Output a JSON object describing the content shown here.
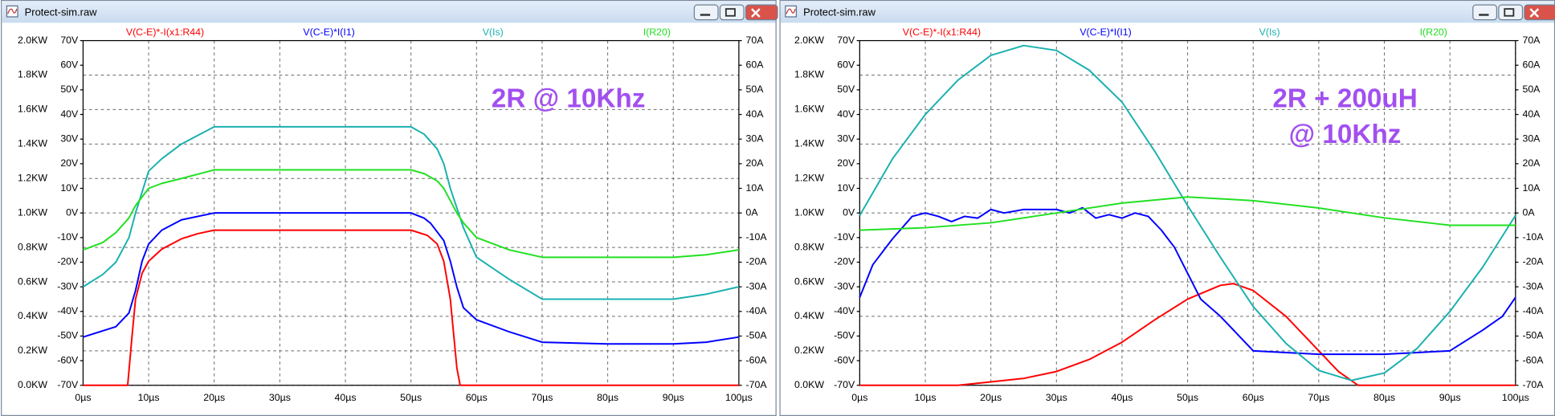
{
  "windows": [
    {
      "title": "Protect-sim.raw"
    },
    {
      "title": "Protect-sim.raw"
    }
  ],
  "chart_data": [
    {
      "type": "line",
      "annotation": [
        "2R @ 10Khz"
      ],
      "annotation_color": "#a24ff0",
      "grid": true,
      "xlim": [
        0,
        100
      ],
      "xticks": [
        {
          "value": 0,
          "label": "0µs"
        },
        {
          "value": 10,
          "label": "10µs"
        },
        {
          "value": 20,
          "label": "20µs"
        },
        {
          "value": 30,
          "label": "30µs"
        },
        {
          "value": 40,
          "label": "40µs"
        },
        {
          "value": 50,
          "label": "50µs"
        },
        {
          "value": 60,
          "label": "60µs"
        },
        {
          "value": 70,
          "label": "70µs"
        },
        {
          "value": 80,
          "label": "80µs"
        },
        {
          "value": 90,
          "label": "90µs"
        },
        {
          "value": 100,
          "label": "100µs"
        }
      ],
      "ylim": [
        0,
        2
      ],
      "yticks": [
        {
          "value": 0,
          "label": "0.0KW"
        },
        {
          "value": 0.2,
          "label": "0.2KW"
        },
        {
          "value": 0.4,
          "label": "0.4KW"
        },
        {
          "value": 0.6,
          "label": "0.6KW"
        },
        {
          "value": 0.8,
          "label": "0.8KW"
        },
        {
          "value": 1,
          "label": "1.0KW"
        },
        {
          "value": 1.2,
          "label": "1.2KW"
        },
        {
          "value": 1.4,
          "label": "1.4KW"
        },
        {
          "value": 1.6,
          "label": "1.6KW"
        },
        {
          "value": 1.8,
          "label": "1.8KW"
        },
        {
          "value": 2,
          "label": "2.0KW"
        }
      ],
      "y2lim": [
        -70,
        70
      ],
      "y2ticks": [
        {
          "value": -70,
          "label": "-70V"
        },
        {
          "value": -60,
          "label": "-60V"
        },
        {
          "value": -50,
          "label": "-50V"
        },
        {
          "value": -40,
          "label": "-40V"
        },
        {
          "value": -30,
          "label": "-30V"
        },
        {
          "value": -20,
          "label": "-20V"
        },
        {
          "value": -10,
          "label": "-10V"
        },
        {
          "value": 0,
          "label": "0V"
        },
        {
          "value": 10,
          "label": "10V"
        },
        {
          "value": 20,
          "label": "20V"
        },
        {
          "value": 30,
          "label": "30V"
        },
        {
          "value": 40,
          "label": "40V"
        },
        {
          "value": 50,
          "label": "50V"
        },
        {
          "value": 60,
          "label": "60V"
        },
        {
          "value": 70,
          "label": "70V"
        }
      ],
      "y3lim": [
        -70,
        70
      ],
      "y3ticks": [
        {
          "value": -70,
          "label": "-70A"
        },
        {
          "value": -60,
          "label": "-60A"
        },
        {
          "value": -50,
          "label": "-50A"
        },
        {
          "value": -40,
          "label": "-40A"
        },
        {
          "value": -30,
          "label": "-30A"
        },
        {
          "value": -20,
          "label": "-20A"
        },
        {
          "value": -10,
          "label": "-10A"
        },
        {
          "value": 0,
          "label": "0A"
        },
        {
          "value": 10,
          "label": "10A"
        },
        {
          "value": 20,
          "label": "20A"
        },
        {
          "value": 30,
          "label": "30A"
        },
        {
          "value": 40,
          "label": "40A"
        },
        {
          "value": 50,
          "label": "50A"
        },
        {
          "value": 60,
          "label": "60A"
        },
        {
          "value": 70,
          "label": "70A"
        }
      ],
      "series": [
        {
          "name": "V(C-E)*-I(x1:R44)",
          "color": "#ff0000",
          "axis": "y",
          "x": [
            0,
            5,
            6.8,
            7.5,
            8,
            9,
            10,
            12,
            15,
            17.5,
            20,
            30,
            40,
            50,
            52.5,
            54,
            55,
            56,
            57,
            57.5,
            60,
            70,
            80,
            90,
            100
          ],
          "values": [
            0,
            0,
            0,
            0.3,
            0.5,
            0.65,
            0.72,
            0.79,
            0.85,
            0.88,
            0.9,
            0.9,
            0.9,
            0.9,
            0.87,
            0.82,
            0.72,
            0.5,
            0.1,
            0,
            0,
            0,
            0,
            0,
            0
          ]
        },
        {
          "name": "V(C-E)*I(I1)",
          "color": "#0000ff",
          "axis": "y",
          "x": [
            0,
            5,
            7,
            8,
            9,
            10,
            12,
            15,
            20,
            30,
            40,
            50,
            52,
            53,
            55,
            56,
            57,
            58,
            60,
            65,
            70,
            80,
            90,
            95,
            100
          ],
          "values": [
            0.28,
            0.34,
            0.42,
            0.55,
            0.72,
            0.82,
            0.9,
            0.96,
            1,
            1,
            1,
            1,
            0.97,
            0.94,
            0.84,
            0.72,
            0.57,
            0.45,
            0.38,
            0.31,
            0.25,
            0.24,
            0.24,
            0.25,
            0.28
          ]
        },
        {
          "name": "V(Is)",
          "color": "#1ab0b0",
          "axis": "y2",
          "x": [
            0,
            3,
            5,
            7,
            8,
            10,
            12,
            15,
            20,
            30,
            40,
            50,
            52,
            54,
            55,
            56,
            57,
            58,
            60,
            65,
            70,
            80,
            90,
            95,
            100
          ],
          "values": [
            -30,
            -25,
            -20,
            -10,
            0,
            17,
            22,
            28,
            35,
            35,
            35,
            35,
            32,
            26,
            20,
            10,
            2,
            -6,
            -18,
            -27,
            -35,
            -35,
            -35,
            -33,
            -30
          ]
        },
        {
          "name": "I(R20)",
          "color": "#22e022",
          "axis": "y3",
          "x": [
            0,
            3,
            5,
            7,
            8,
            10,
            12,
            15,
            20,
            30,
            40,
            50,
            52,
            54,
            55,
            56,
            57,
            58,
            60,
            65,
            70,
            80,
            90,
            95,
            100
          ],
          "values": [
            -15,
            -12,
            -8,
            -2,
            3,
            10,
            12,
            14,
            17.5,
            17.5,
            17.5,
            17.5,
            16,
            13,
            10,
            5,
            0,
            -4,
            -10,
            -15,
            -18,
            -18,
            -18,
            -17,
            -15
          ]
        }
      ]
    },
    {
      "type": "line",
      "annotation": [
        "2R + 200uH",
        "@ 10Khz"
      ],
      "annotation_color": "#a24ff0",
      "grid": true,
      "xlim": [
        0,
        100
      ],
      "xticks": [
        {
          "value": 0,
          "label": "0µs"
        },
        {
          "value": 10,
          "label": "10µs"
        },
        {
          "value": 20,
          "label": "20µs"
        },
        {
          "value": 30,
          "label": "30µs"
        },
        {
          "value": 40,
          "label": "40µs"
        },
        {
          "value": 50,
          "label": "50µs"
        },
        {
          "value": 60,
          "label": "60µs"
        },
        {
          "value": 70,
          "label": "70µs"
        },
        {
          "value": 80,
          "label": "80µs"
        },
        {
          "value": 90,
          "label": "90µs"
        },
        {
          "value": 100,
          "label": "100µs"
        }
      ],
      "ylim": [
        0,
        2
      ],
      "yticks": [
        {
          "value": 0,
          "label": "0.0KW"
        },
        {
          "value": 0.2,
          "label": "0.2KW"
        },
        {
          "value": 0.4,
          "label": "0.4KW"
        },
        {
          "value": 0.6,
          "label": "0.6KW"
        },
        {
          "value": 0.8,
          "label": "0.8KW"
        },
        {
          "value": 1,
          "label": "1.0KW"
        },
        {
          "value": 1.2,
          "label": "1.2KW"
        },
        {
          "value": 1.4,
          "label": "1.4KW"
        },
        {
          "value": 1.6,
          "label": "1.6KW"
        },
        {
          "value": 1.8,
          "label": "1.8KW"
        },
        {
          "value": 2,
          "label": "2.0KW"
        }
      ],
      "y2lim": [
        -70,
        70
      ],
      "y2ticks": [
        {
          "value": -70,
          "label": "-70V"
        },
        {
          "value": -60,
          "label": "-60V"
        },
        {
          "value": -50,
          "label": "-50V"
        },
        {
          "value": -40,
          "label": "-40V"
        },
        {
          "value": -30,
          "label": "-30V"
        },
        {
          "value": -20,
          "label": "-20V"
        },
        {
          "value": -10,
          "label": "-10V"
        },
        {
          "value": 0,
          "label": "0V"
        },
        {
          "value": 10,
          "label": "10V"
        },
        {
          "value": 20,
          "label": "20V"
        },
        {
          "value": 30,
          "label": "30V"
        },
        {
          "value": 40,
          "label": "40V"
        },
        {
          "value": 50,
          "label": "50V"
        },
        {
          "value": 60,
          "label": "60V"
        },
        {
          "value": 70,
          "label": "70V"
        }
      ],
      "y3lim": [
        -70,
        70
      ],
      "y3ticks": [
        {
          "value": -70,
          "label": "-70A"
        },
        {
          "value": -60,
          "label": "-60A"
        },
        {
          "value": -50,
          "label": "-50A"
        },
        {
          "value": -40,
          "label": "-40A"
        },
        {
          "value": -30,
          "label": "-30A"
        },
        {
          "value": -20,
          "label": "-20A"
        },
        {
          "value": -10,
          "label": "-10A"
        },
        {
          "value": 0,
          "label": "0A"
        },
        {
          "value": 10,
          "label": "10A"
        },
        {
          "value": 20,
          "label": "20A"
        },
        {
          "value": 30,
          "label": "30A"
        },
        {
          "value": 40,
          "label": "40A"
        },
        {
          "value": 50,
          "label": "50A"
        },
        {
          "value": 60,
          "label": "60A"
        },
        {
          "value": 70,
          "label": "70A"
        }
      ],
      "series": [
        {
          "name": "V(C-E)*-I(x1:R44)",
          "color": "#ff0000",
          "axis": "y",
          "x": [
            0,
            15,
            20,
            25,
            30,
            35,
            40,
            45,
            50,
            55,
            57,
            60,
            65,
            70,
            73,
            76,
            80,
            90,
            100
          ],
          "values": [
            0,
            0,
            0.02,
            0.04,
            0.08,
            0.15,
            0.25,
            0.38,
            0.5,
            0.58,
            0.59,
            0.55,
            0.4,
            0.2,
            0.08,
            0,
            0,
            0,
            0
          ]
        },
        {
          "name": "V(C-E)*I(I1)",
          "color": "#0000ff",
          "axis": "y",
          "x": [
            0,
            2,
            5,
            8,
            10,
            12,
            14,
            16,
            18,
            20,
            22,
            25,
            30,
            32,
            34,
            36,
            38,
            40,
            42,
            44,
            46,
            48,
            50,
            52,
            55,
            60,
            70,
            80,
            90,
            95,
            98,
            100
          ],
          "values": [
            0.51,
            0.7,
            0.85,
            0.98,
            1,
            0.98,
            0.95,
            0.98,
            0.97,
            1.02,
            1,
            1.02,
            1.02,
            1,
            1.03,
            0.97,
            0.99,
            0.97,
            1,
            0.98,
            0.9,
            0.8,
            0.65,
            0.5,
            0.4,
            0.2,
            0.18,
            0.18,
            0.2,
            0.32,
            0.4,
            0.51
          ]
        },
        {
          "name": "V(Is)",
          "color": "#1ab0b0",
          "axis": "y2",
          "x": [
            0,
            5,
            10,
            15,
            20,
            25,
            30,
            35,
            40,
            45,
            50,
            55,
            60,
            65,
            70,
            75,
            80,
            85,
            90,
            95,
            100
          ],
          "values": [
            -1,
            22,
            40,
            54,
            64,
            68,
            66,
            58,
            45,
            25,
            3,
            -18,
            -38,
            -53,
            -64,
            -68,
            -65,
            -55,
            -40,
            -22,
            -1
          ]
        },
        {
          "name": "I(R20)",
          "color": "#22e022",
          "axis": "y3",
          "x": [
            0,
            10,
            20,
            30,
            40,
            50,
            60,
            70,
            80,
            90,
            100
          ],
          "values": [
            -7,
            -6,
            -4,
            0,
            4,
            6.5,
            5,
            2,
            -2,
            -5,
            -5
          ]
        }
      ]
    }
  ]
}
